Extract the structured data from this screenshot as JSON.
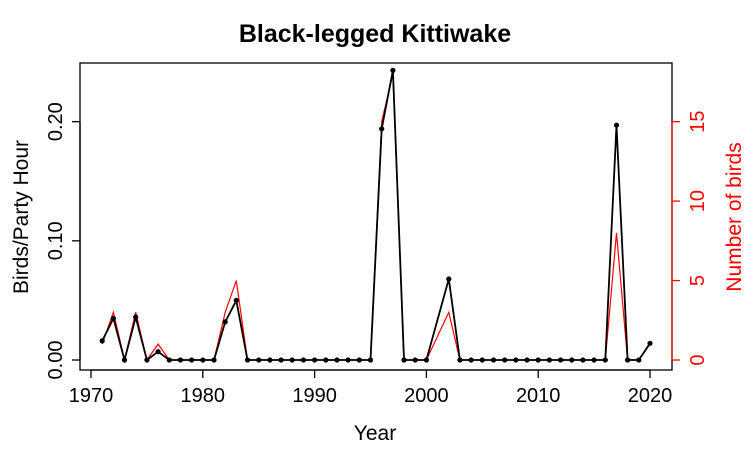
{
  "chart_data": {
    "type": "line",
    "title": "Black-legged Kittiwake",
    "xlabel": "Year",
    "ylabel": "Birds/Party Hour",
    "ylabel_right": "Number of birds",
    "xlim": [
      1970,
      2020
    ],
    "ylim": [
      0,
      0.24
    ],
    "ylim_right": [
      0,
      18
    ],
    "x_ticks": [
      1970,
      1980,
      1990,
      2000,
      2010,
      2020
    ],
    "y_ticks": [
      "0.00",
      "0.10",
      "0.20"
    ],
    "y_ticks_right": [
      "0",
      "5",
      "10",
      "15"
    ],
    "grid": false,
    "colors": {
      "birds_per_party_hour": "#000000",
      "number_of_birds": "#ff0000"
    },
    "series": [
      {
        "axis": "left",
        "x": [
          1971,
          1972,
          1973,
          1974,
          1975,
          1976,
          1977,
          1978,
          1979,
          1980,
          1981,
          1982,
          1983,
          1984,
          1985,
          1986,
          1987,
          1988,
          1989,
          1990,
          1991,
          1992,
          1993,
          1994,
          1995,
          1996,
          1997,
          1998,
          1999,
          2000,
          2002,
          2003,
          2004,
          2005,
          2006,
          2007,
          2008,
          2009,
          2010,
          2011,
          2012,
          2013,
          2014,
          2015,
          2016,
          2017,
          2018,
          2019,
          2020
        ],
        "values": [
          0.016,
          0.035,
          0.0,
          0.036,
          0.0,
          0.007,
          0.0,
          0.0,
          0.0,
          0.0,
          0.0,
          0.032,
          0.05,
          0.0,
          0.0,
          0.0,
          0.0,
          0.0,
          0.0,
          0.0,
          0.0,
          0.0,
          0.0,
          0.0,
          0.0,
          0.194,
          0.243,
          0.0,
          0.0,
          0.0,
          0.068,
          0.0,
          0.0,
          0.0,
          0.0,
          0.0,
          0.0,
          0.0,
          0.0,
          0.0,
          0.0,
          0.0,
          0.0,
          0.0,
          0.0,
          0.197,
          0.0,
          0.0,
          0.014
        ]
      },
      {
        "axis": "right",
        "x": [
          1971,
          1972,
          1973,
          1974,
          1975,
          1976,
          1977,
          1978,
          1979,
          1980,
          1981,
          1982,
          1983,
          1984,
          1985,
          1986,
          1987,
          1988,
          1989,
          1990,
          1991,
          1992,
          1993,
          1994,
          1995,
          1996,
          1997,
          1998,
          1999,
          2000,
          2002,
          2003,
          2004,
          2005,
          2006,
          2007,
          2008,
          2009,
          2010,
          2011,
          2012,
          2013,
          2014,
          2015,
          2016,
          2017,
          2018,
          2019,
          2020
        ],
        "values": [
          1,
          3,
          0,
          3,
          0,
          1,
          0,
          0,
          0,
          0,
          0,
          3,
          5,
          0,
          0,
          0,
          0,
          0,
          0,
          0,
          0,
          0,
          0,
          0,
          0,
          15,
          18,
          0,
          0,
          0,
          3,
          0,
          0,
          0,
          0,
          0,
          0,
          0,
          0,
          0,
          0,
          0,
          0,
          0,
          0,
          8,
          0,
          0,
          1
        ]
      }
    ]
  }
}
